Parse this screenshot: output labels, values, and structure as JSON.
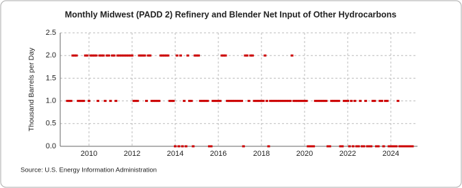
{
  "chart_data": {
    "type": "scatter",
    "title": "Monthly Midwest (PADD 2) Refinery and Blender Net Input of Other Hydrocarbons",
    "y_label": "Thousand Barrels per Day",
    "source": "Source: U.S. Energy Information Administration",
    "color": "#cc0000",
    "grid": true,
    "ylim": [
      0,
      2.5
    ],
    "yticks": [
      {
        "value": 0,
        "label": "0.0"
      },
      0.5,
      {
        "value": 1,
        "label": "1.0"
      },
      1.5,
      {
        "value": 2,
        "label": "2.0"
      },
      2.5
    ],
    "categories": [
      null,
      null,
      null,
      null,
      null,
      null,
      null,
      null,
      null,
      null,
      null,
      null,
      "2010",
      null,
      null,
      null,
      null,
      null,
      null,
      null,
      null,
      null,
      null,
      null,
      null,
      null,
      null,
      null,
      null,
      null,
      null,
      null,
      null,
      null,
      null,
      null,
      "2012",
      null,
      null,
      null,
      null,
      null,
      null,
      null,
      null,
      null,
      null,
      null,
      null,
      null,
      null,
      null,
      null,
      null,
      null,
      null,
      null,
      null,
      null,
      null,
      "2014",
      null,
      null,
      null,
      null,
      null,
      null,
      null,
      null,
      null,
      null,
      null,
      null,
      null,
      null,
      null,
      null,
      null,
      null,
      null,
      null,
      null,
      null,
      null,
      "2016",
      null,
      null,
      null,
      null,
      null,
      null,
      null,
      null,
      null,
      null,
      null,
      null,
      null,
      null,
      null,
      null,
      null,
      null,
      null,
      null,
      null,
      null,
      null,
      "2018",
      null,
      null,
      null,
      null,
      null,
      null,
      null,
      null,
      null,
      null,
      null,
      null,
      null,
      null,
      null,
      null,
      null,
      null,
      null,
      null,
      null,
      null,
      null,
      "2020",
      null,
      null,
      null,
      null,
      null,
      null,
      null,
      null,
      null,
      null,
      null,
      null,
      null,
      null,
      null,
      null,
      null,
      null,
      null,
      null,
      null,
      null,
      null,
      "2022",
      null,
      null,
      null,
      null,
      null,
      null,
      null,
      null,
      null,
      null,
      null,
      null,
      null,
      null,
      null,
      null,
      null,
      null,
      null,
      null,
      null,
      null,
      null,
      "2024",
      null,
      null,
      null,
      null,
      null,
      null,
      null,
      null,
      null,
      null,
      null,
      null
    ],
    "values": [
      1,
      1,
      1,
      2,
      2,
      2,
      1,
      1,
      1,
      1,
      2,
      2,
      1,
      2,
      2,
      2,
      2,
      1,
      2,
      2,
      2,
      1,
      2,
      2,
      1,
      2,
      2,
      1,
      2,
      2,
      2,
      2,
      2,
      2,
      2,
      2,
      2,
      1,
      1,
      1,
      2,
      2,
      2,
      2,
      1,
      2,
      2,
      1,
      1,
      1,
      1,
      1,
      2,
      2,
      2,
      2,
      2,
      1,
      1,
      1,
      0,
      2,
      0,
      2,
      0,
      1,
      0,
      2,
      1,
      1,
      0,
      2,
      2,
      2,
      1,
      1,
      1,
      1,
      1,
      0,
      0,
      1,
      1,
      1,
      1,
      1,
      2,
      2,
      2,
      1,
      1,
      1,
      1,
      1,
      1,
      1,
      1,
      1,
      0,
      2,
      2,
      1,
      2,
      2,
      1,
      1,
      1,
      1,
      1,
      1,
      2,
      1,
      0,
      1,
      1,
      1,
      1,
      1,
      1,
      1,
      1,
      1,
      1,
      1,
      1,
      2,
      1,
      1,
      1,
      1,
      1,
      1,
      1,
      1,
      0,
      0,
      0,
      0,
      1,
      1,
      1,
      1,
      1,
      1,
      1,
      0,
      0,
      1,
      1,
      1,
      1,
      1,
      0,
      0,
      1,
      1,
      1,
      0,
      1,
      0,
      1,
      0,
      0,
      1,
      0,
      0,
      1,
      0,
      0,
      0,
      1,
      1,
      0,
      0,
      1,
      1,
      0,
      1,
      1,
      0,
      0,
      0,
      0,
      0,
      1,
      0,
      0,
      0,
      0,
      0,
      0,
      0,
      0
    ]
  }
}
